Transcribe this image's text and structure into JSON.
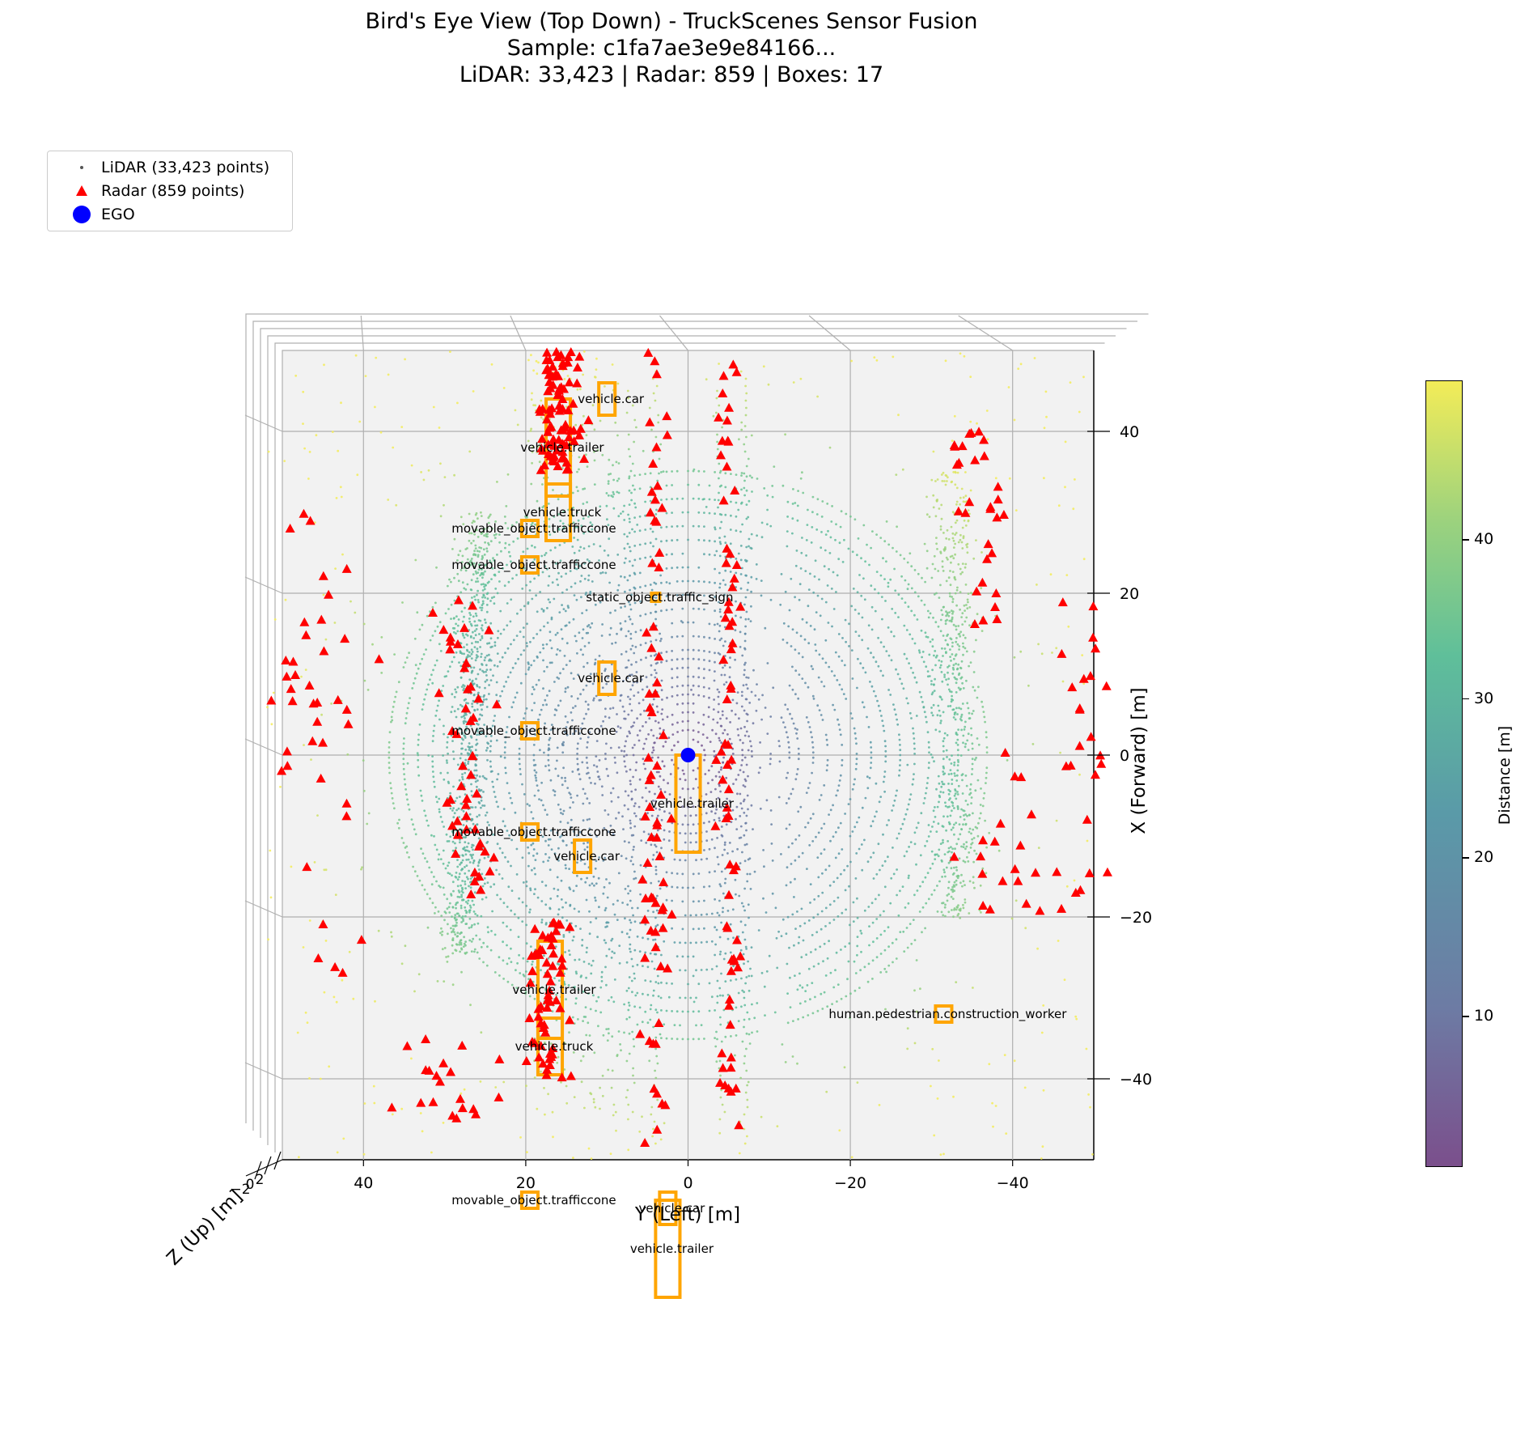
{
  "title": {
    "line1": "Bird's Eye View (Top Down) - TruckScenes Sensor Fusion",
    "line2": "Sample: c1fa7ae3e9e84166...",
    "line3": "LiDAR: 33,423 | Radar: 859 | Boxes: 17"
  },
  "legend": {
    "lidar": "LiDAR (33,423 points)",
    "radar": "Radar (859 points)",
    "ego": "EGO"
  },
  "axes": {
    "xlabel": "Y (Left) [m]",
    "ylabel": "X (Forward) [m]",
    "zlabel": "Z (Up) [m]",
    "x_ticks": [
      "40",
      "20",
      "0",
      "−20",
      "−40"
    ],
    "y_ticks": [
      "40",
      "20",
      "0",
      "−20",
      "−40"
    ],
    "z_ticks": [
      "2",
      "0",
      "−2"
    ]
  },
  "colorbar": {
    "label": "Distance [m]",
    "ticks": [
      "10",
      "20",
      "30",
      "40"
    ],
    "range": [
      0.5,
      50
    ]
  },
  "colors": {
    "radar": "#ff0000",
    "ego": "#0000ff",
    "box": "#ffa500",
    "pane": "#f2f2f2",
    "grid": "#b0b0b0"
  },
  "chart_data": {
    "type": "scatter",
    "xlim": [
      50,
      -50
    ],
    "ylim": [
      -50,
      50
    ],
    "grid": true,
    "legend_position": "top-left",
    "ego": {
      "y": 0,
      "x": 0
    },
    "boxes": [
      {
        "label": "vehicle.car",
        "y": 10,
        "x": 44
      },
      {
        "label": "vehicle.trailer",
        "y": 16,
        "x": 38
      },
      {
        "label": "vehicle.truck",
        "y": 16,
        "x": 30
      },
      {
        "label": "movable_object.trafficcone",
        "y": 19.5,
        "x": 28
      },
      {
        "label": "movable_object.trafficcone",
        "y": 19.5,
        "x": 23.5
      },
      {
        "label": "static_object.traffic_sign",
        "y": 4,
        "x": 19.5
      },
      {
        "label": "vehicle.car",
        "y": 10,
        "x": 9.5
      },
      {
        "label": "movable_object.trafficcone",
        "y": 19.5,
        "x": 3
      },
      {
        "label": "vehicle.trailer",
        "y": 0,
        "x": -6
      },
      {
        "label": "movable_object.trafficcone",
        "y": 19.5,
        "x": -9.5
      },
      {
        "label": "vehicle.car",
        "y": 13,
        "x": -12.5
      },
      {
        "label": "vehicle.trailer",
        "y": 17,
        "x": -29
      },
      {
        "label": "vehicle.truck",
        "y": 17,
        "x": -36
      },
      {
        "label": "human.pedestrian.construction_worker",
        "y": -31.5,
        "x": -32
      },
      {
        "label": "movable_object.trafficcone",
        "y": 19.5,
        "x": -55
      },
      {
        "label": "vehicle.car",
        "y": 2.5,
        "x": -56
      },
      {
        "label": "vehicle.trailer",
        "y": 2.5,
        "x": -61
      }
    ]
  }
}
